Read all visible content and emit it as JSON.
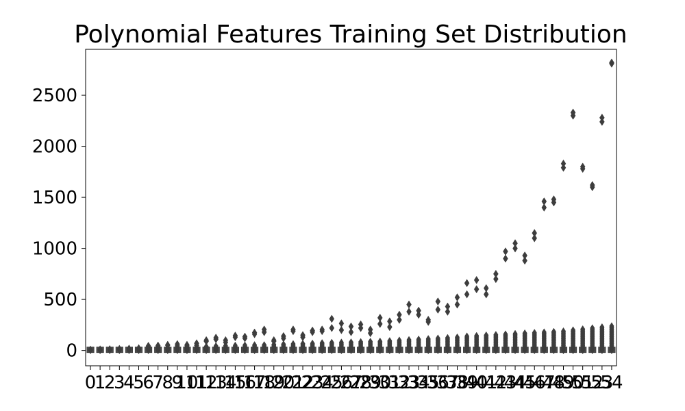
{
  "chart_data": {
    "type": "box",
    "title": "Polynomial Features Training Set Distribution",
    "xlabel": "",
    "ylabel": "",
    "ylim": [
      -150,
      2950
    ],
    "y_ticks": [
      0,
      500,
      1000,
      1500,
      2000,
      2500
    ],
    "categories": [
      "0",
      "1",
      "2",
      "3",
      "4",
      "5",
      "6",
      "7",
      "8",
      "9",
      "10",
      "11",
      "12",
      "13",
      "14",
      "15",
      "16",
      "17",
      "18",
      "19",
      "20",
      "21",
      "22",
      "23",
      "24",
      "25",
      "26",
      "27",
      "28",
      "29",
      "30",
      "31",
      "32",
      "33",
      "34",
      "35",
      "36",
      "37",
      "38",
      "39",
      "40",
      "41",
      "42",
      "43",
      "44",
      "45",
      "46",
      "47",
      "48",
      "49",
      "50",
      "51",
      "52",
      "53",
      "54"
    ],
    "whisker_max": [
      8,
      10,
      12,
      14,
      16,
      18,
      22,
      25,
      28,
      30,
      32,
      34,
      40,
      44,
      48,
      50,
      52,
      55,
      55,
      60,
      62,
      65,
      68,
      70,
      75,
      78,
      80,
      82,
      85,
      88,
      90,
      95,
      100,
      105,
      110,
      115,
      120,
      125,
      130,
      140,
      145,
      150,
      155,
      160,
      165,
      170,
      175,
      180,
      185,
      190,
      200,
      210,
      220,
      230,
      240
    ],
    "outliers": [
      [
        8
      ],
      [
        10
      ],
      [
        12
      ],
      [
        15
      ],
      [
        18
      ],
      [
        22
      ],
      [
        40,
        45
      ],
      [
        40,
        48
      ],
      [
        50,
        55
      ],
      [
        45,
        62
      ],
      [
        45,
        55
      ],
      [
        50,
        70
      ],
      [
        90,
        100
      ],
      [
        110,
        125
      ],
      [
        80,
        100
      ],
      [
        130,
        145
      ],
      [
        120,
        135
      ],
      [
        160,
        175
      ],
      [
        180,
        205
      ],
      [
        90,
        100
      ],
      [
        120,
        140
      ],
      [
        190,
        205
      ],
      [
        130,
        150
      ],
      [
        180,
        195
      ],
      [
        190,
        205
      ],
      [
        220,
        310
      ],
      [
        200,
        265
      ],
      [
        180,
        235
      ],
      [
        220,
        255
      ],
      [
        170,
        205
      ],
      [
        260,
        320
      ],
      [
        230,
        285
      ],
      [
        300,
        350
      ],
      [
        380,
        450
      ],
      [
        350,
        390
      ],
      [
        280,
        300
      ],
      [
        400,
        480
      ],
      [
        380,
        430
      ],
      [
        450,
        520
      ],
      [
        550,
        660
      ],
      [
        600,
        690
      ],
      [
        550,
        610
      ],
      [
        700,
        750
      ],
      [
        900,
        970
      ],
      [
        1000,
        1050
      ],
      [
        880,
        930
      ],
      [
        1100,
        1150
      ],
      [
        1400,
        1460
      ],
      [
        1450,
        1480
      ],
      [
        1790,
        1830
      ],
      [
        2300,
        2330
      ],
      [
        1780,
        1800
      ],
      [
        1600,
        1620
      ],
      [
        2240,
        2280
      ],
      [
        2810,
        2820
      ]
    ]
  }
}
